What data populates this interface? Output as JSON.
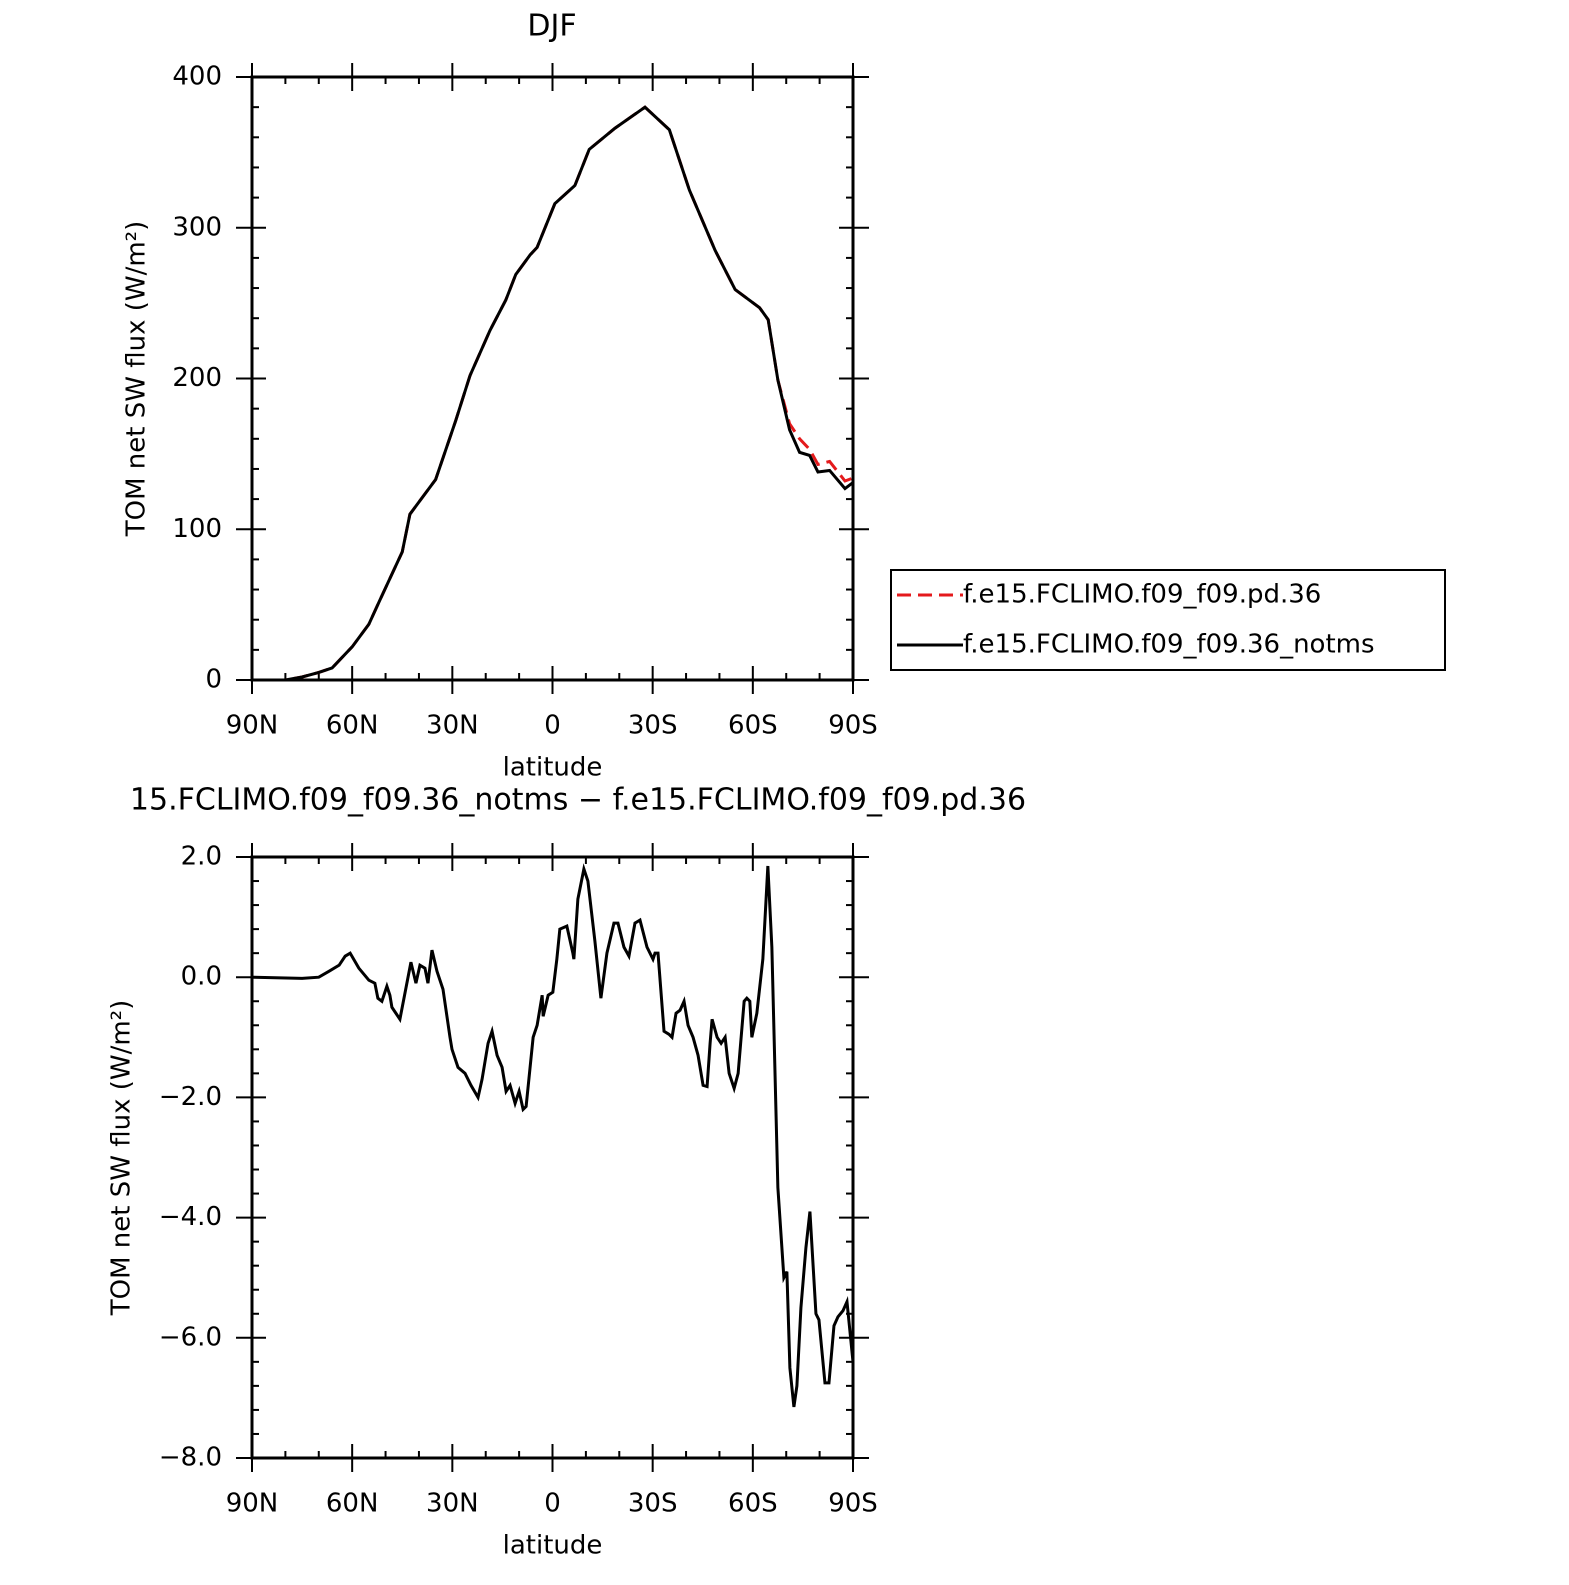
{
  "chart_data": [
    {
      "type": "line",
      "title": "DJF",
      "xlabel": "latitude",
      "ylabel": "TOM net SW flux (W/m²)",
      "x": [
        90,
        80,
        75,
        70,
        66,
        60,
        55,
        51.7,
        45,
        42.7,
        35,
        29,
        24.7,
        18.7,
        14,
        11,
        6.7,
        4.6,
        -0.7,
        -6.7,
        -11,
        -18.7,
        -27.7,
        -35,
        -41,
        -48.7,
        -54.7,
        -62,
        -64.6,
        -67.5,
        -71,
        -74,
        -77,
        -79.5,
        -83,
        -87.6,
        -90
      ],
      "series": [
        {
          "name": "f.e15.FCLIMO.f09_f09.pd.36",
          "color": "#e41a1c",
          "dashed": true,
          "values": [
            0,
            0,
            2,
            5,
            8,
            22,
            37,
            53,
            85,
            110,
            133,
            172,
            202,
            232,
            252,
            269,
            282,
            287,
            316,
            328,
            352,
            366,
            380,
            365,
            325,
            285,
            259,
            247,
            239,
            199,
            170,
            160,
            153,
            143,
            145,
            132,
            134
          ]
        },
        {
          "name": "f.e15.FCLIMO.f09_f09.36_notms",
          "color": "#000000",
          "dashed": false,
          "values": [
            0,
            0,
            2,
            5,
            8,
            22,
            37,
            53,
            85,
            110,
            133,
            172,
            202,
            232,
            252,
            269,
            282,
            287,
            316,
            328,
            352,
            366,
            380,
            365,
            325,
            285,
            259,
            247,
            239,
            199,
            166,
            151,
            149,
            138,
            139,
            127,
            131
          ]
        }
      ],
      "xlim": [
        90,
        -90
      ],
      "xticks": [
        {
          "value": 90,
          "label": "90N"
        },
        {
          "value": 60,
          "label": "60N"
        },
        {
          "value": 30,
          "label": "30N"
        },
        0,
        {
          "value": -30,
          "label": "30S"
        },
        {
          "value": -60,
          "label": "60S"
        },
        {
          "value": -90,
          "label": "90S"
        }
      ],
      "ylim": [
        0,
        400
      ],
      "yticks": [
        0,
        100,
        200,
        300,
        400
      ],
      "legend": "right"
    },
    {
      "type": "line",
      "title": "15.FCLIMO.f09_f09.36_notms − f.e15.FCLIMO.f09_f09.pd.36",
      "xlabel": "latitude",
      "ylabel": "TOM net SW flux (W/m²)",
      "x": [
        90,
        75,
        70,
        66.9,
        63.9,
        62.1,
        60.6,
        58,
        55,
        53.2,
        52.3,
        51.1,
        49.6,
        48.7,
        48.1,
        46.9,
        45.7,
        42.4,
        40.9,
        39.7,
        38.2,
        37.3,
        36.1,
        34.6,
        32.8,
        30.7,
        30.1,
        28.3,
        26.2,
        24.4,
        22.3,
        21.1,
        19.3,
        18.1,
        16.6,
        15.1,
        13.9,
        12.7,
        11.2,
        10,
        8.8,
        7.9,
        5.8,
        4.6,
        3.1,
        2.8,
        1.3,
        -0.1,
        -1.3,
        -2.2,
        -4.3,
        -6.1,
        -6.4,
        -7.6,
        -9.4,
        -10.6,
        -12.7,
        -14.5,
        -16.3,
        -18.4,
        -19.6,
        -21.4,
        -22.9,
        -24.7,
        -26.2,
        -28.3,
        -30.1,
        -30.7,
        -31.6,
        -33.4,
        -34.9,
        -35.8,
        -37,
        -38.2,
        -39.4,
        -40.6,
        -42.1,
        -43.6,
        -45.1,
        -46.3,
        -47.2,
        -47.8,
        -49.3,
        -50.5,
        -51.7,
        -52.9,
        -54.4,
        -55.6,
        -57.4,
        -58.2,
        -59.1,
        -59.7,
        -61.2,
        -63,
        -64.5,
        -65.7,
        -67.5,
        -69.3,
        -70.2,
        -71.1,
        -72.3,
        -73.2,
        -74.4,
        -75.9,
        -77.1,
        -78.9,
        -79.8,
        -81.6,
        -82.8,
        -84.3,
        -85.5,
        -87,
        -88.2,
        -90
      ],
      "series": [
        {
          "color": "#000000",
          "dashed": false,
          "values": [
            0,
            -0.02,
            0,
            0.1,
            0.2,
            0.35,
            0.4,
            0.15,
            -0.05,
            -0.1,
            -0.35,
            -0.4,
            -0.15,
            -0.3,
            -0.5,
            -0.6,
            -0.7,
            0.25,
            -0.1,
            0.2,
            0.15,
            -0.1,
            0.45,
            0.1,
            -0.2,
            -1.0,
            -1.2,
            -1.5,
            -1.6,
            -1.8,
            -2.0,
            -1.7,
            -1.1,
            -0.9,
            -1.3,
            -1.5,
            -1.9,
            -1.8,
            -2.1,
            -1.9,
            -2.2,
            -2.15,
            -1.0,
            -0.8,
            -0.3,
            -0.65,
            -0.3,
            -0.25,
            0.3,
            0.8,
            0.85,
            0.4,
            0.3,
            1.3,
            1.8,
            1.6,
            0.6,
            -0.35,
            0.4,
            0.9,
            0.9,
            0.5,
            0.35,
            0.9,
            0.95,
            0.5,
            0.3,
            0.4,
            0.4,
            -0.9,
            -0.95,
            -1.0,
            -0.6,
            -0.55,
            -0.4,
            -0.8,
            -1.0,
            -1.3,
            -1.8,
            -1.82,
            -1.1,
            -0.7,
            -1.0,
            -1.1,
            -1.0,
            -1.6,
            -1.85,
            -1.6,
            -0.4,
            -0.35,
            -0.4,
            -1.0,
            -0.6,
            0.3,
            1.85,
            0.5,
            -3.5,
            -5.0,
            -4.9,
            -6.5,
            -7.15,
            -6.8,
            -5.5,
            -4.5,
            -3.9,
            -5.6,
            -5.7,
            -6.75,
            -6.75,
            -5.8,
            -5.65,
            -5.55,
            -5.4,
            -6.4
          ]
        }
      ],
      "xlim": [
        90,
        -90
      ],
      "xticks": [
        {
          "value": 90,
          "label": "90N"
        },
        {
          "value": 60,
          "label": "60N"
        },
        {
          "value": 30,
          "label": "30N"
        },
        0,
        {
          "value": -30,
          "label": "30S"
        },
        {
          "value": -60,
          "label": "60S"
        },
        {
          "value": -90,
          "label": "90S"
        }
      ],
      "ylim": [
        -8,
        2
      ],
      "yticks": [
        {
          "value": -8,
          "label": "−8.0"
        },
        {
          "value": -6,
          "label": "−6.0"
        },
        {
          "value": -4,
          "label": "−4.0"
        },
        {
          "value": -2,
          "label": "−2.0"
        },
        {
          "value": 0,
          "label": "0.0"
        },
        {
          "value": 2,
          "label": "2.0"
        }
      ]
    }
  ]
}
